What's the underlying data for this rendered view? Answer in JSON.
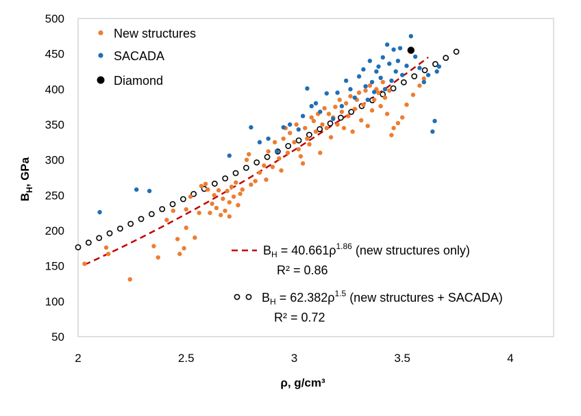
{
  "chart_data": {
    "type": "scatter",
    "xlabel": "ρ, g/cm³",
    "ylabel_main": "B",
    "ylabel_sub": "H",
    "ylabel_rest": ", GPa",
    "xlim": [
      2,
      4.2
    ],
    "ylim": [
      50,
      500
    ],
    "xticks": [
      2,
      2.5,
      3,
      3.5,
      4
    ],
    "xtick_labels": [
      "2",
      "2.5",
      "3",
      "3.5",
      "4"
    ],
    "yticks": [
      50,
      100,
      150,
      200,
      250,
      300,
      350,
      400,
      450,
      500
    ],
    "grid": false,
    "legend_position": "top-left",
    "colors": {
      "new": "#ED7D31",
      "sacada": "#1F6FB5",
      "diamond": "#000000",
      "fit_new": "#C00000",
      "fit_all": "#000000"
    },
    "series": [
      {
        "name": "New structures",
        "marker": "dot",
        "points": [
          [
            2.03,
            153
          ],
          [
            2.13,
            176
          ],
          [
            2.14,
            167
          ],
          [
            2.24,
            131
          ],
          [
            2.35,
            178
          ],
          [
            2.37,
            162
          ],
          [
            2.41,
            215
          ],
          [
            2.44,
            228
          ],
          [
            2.46,
            188
          ],
          [
            2.47,
            167
          ],
          [
            2.49,
            175
          ],
          [
            2.5,
            204
          ],
          [
            2.5,
            230
          ],
          [
            2.52,
            248
          ],
          [
            2.54,
            190
          ],
          [
            2.56,
            225
          ],
          [
            2.57,
            263
          ],
          [
            2.59,
            266
          ],
          [
            2.6,
            258
          ],
          [
            2.61,
            225
          ],
          [
            2.62,
            238
          ],
          [
            2.63,
            250
          ],
          [
            2.64,
            232
          ],
          [
            2.65,
            257
          ],
          [
            2.66,
            222
          ],
          [
            2.67,
            245
          ],
          [
            2.68,
            228
          ],
          [
            2.69,
            256
          ],
          [
            2.7,
            240
          ],
          [
            2.7,
            220
          ],
          [
            2.71,
            262
          ],
          [
            2.72,
            248
          ],
          [
            2.73,
            268
          ],
          [
            2.74,
            236
          ],
          [
            2.75,
            252
          ],
          [
            2.76,
            258
          ],
          [
            2.78,
            300
          ],
          [
            2.79,
            308
          ],
          [
            2.8,
            265
          ],
          [
            2.82,
            270
          ],
          [
            2.84,
            282
          ],
          [
            2.86,
            292
          ],
          [
            2.87,
            272
          ],
          [
            2.88,
            312
          ],
          [
            2.9,
            290
          ],
          [
            2.91,
            325
          ],
          [
            2.93,
            302
          ],
          [
            2.94,
            285
          ],
          [
            2.95,
            330
          ],
          [
            2.96,
            345
          ],
          [
            2.97,
            310
          ],
          [
            2.98,
            338
          ],
          [
            3.0,
            325
          ],
          [
            3.01,
            350
          ],
          [
            3.02,
            315
          ],
          [
            3.03,
            305
          ],
          [
            3.04,
            295
          ],
          [
            3.05,
            345
          ],
          [
            3.06,
            330
          ],
          [
            3.07,
            322
          ],
          [
            3.08,
            360
          ],
          [
            3.09,
            355
          ],
          [
            3.1,
            340
          ],
          [
            3.11,
            365
          ],
          [
            3.12,
            310
          ],
          [
            3.13,
            350
          ],
          [
            3.14,
            373
          ],
          [
            3.15,
            345
          ],
          [
            3.16,
            365
          ],
          [
            3.17,
            332
          ],
          [
            3.18,
            360
          ],
          [
            3.19,
            375
          ],
          [
            3.2,
            350
          ],
          [
            3.21,
            385
          ],
          [
            3.22,
            368
          ],
          [
            3.23,
            345
          ],
          [
            3.24,
            380
          ],
          [
            3.25,
            362
          ],
          [
            3.26,
            390
          ],
          [
            3.27,
            340
          ],
          [
            3.28,
            372
          ],
          [
            3.29,
            385
          ],
          [
            3.3,
            395
          ],
          [
            3.31,
            356
          ],
          [
            3.32,
            378
          ],
          [
            3.33,
            398
          ],
          [
            3.34,
            348
          ],
          [
            3.35,
            405
          ],
          [
            3.36,
            370
          ],
          [
            3.37,
            385
          ],
          [
            3.38,
            400
          ],
          [
            3.39,
            395
          ],
          [
            3.4,
            376
          ],
          [
            3.41,
            410
          ],
          [
            3.42,
            388
          ],
          [
            3.43,
            365
          ],
          [
            3.44,
            398
          ],
          [
            3.45,
            335
          ],
          [
            3.46,
            345
          ],
          [
            3.48,
            352
          ],
          [
            3.5,
            360
          ],
          [
            3.52,
            378
          ],
          [
            3.55,
            392
          ],
          [
            3.58,
            405
          ],
          [
            3.6,
            415
          ]
        ]
      },
      {
        "name": "SACADA",
        "marker": "dot",
        "points": [
          [
            2.1,
            226
          ],
          [
            2.27,
            258
          ],
          [
            2.33,
            256
          ],
          [
            2.7,
            306
          ],
          [
            2.8,
            346
          ],
          [
            2.84,
            325
          ],
          [
            2.88,
            330
          ],
          [
            2.92,
            312
          ],
          [
            2.95,
            346
          ],
          [
            2.98,
            350
          ],
          [
            3.02,
            343
          ],
          [
            3.04,
            362
          ],
          [
            3.06,
            401
          ],
          [
            3.08,
            376
          ],
          [
            3.1,
            380
          ],
          [
            3.12,
            368
          ],
          [
            3.15,
            394
          ],
          [
            3.18,
            358
          ],
          [
            3.2,
            395
          ],
          [
            3.22,
            376
          ],
          [
            3.24,
            412
          ],
          [
            3.26,
            400
          ],
          [
            3.28,
            388
          ],
          [
            3.3,
            418
          ],
          [
            3.32,
            428
          ],
          [
            3.33,
            404
          ],
          [
            3.34,
            385
          ],
          [
            3.35,
            440
          ],
          [
            3.36,
            410
          ],
          [
            3.37,
            396
          ],
          [
            3.38,
            425
          ],
          [
            3.39,
            432
          ],
          [
            3.4,
            416
          ],
          [
            3.41,
            445
          ],
          [
            3.42,
            400
          ],
          [
            3.43,
            463
          ],
          [
            3.44,
            436
          ],
          [
            3.45,
            412
          ],
          [
            3.46,
            456
          ],
          [
            3.47,
            425
          ],
          [
            3.48,
            440
          ],
          [
            3.49,
            458
          ],
          [
            3.5,
            420
          ],
          [
            3.52,
            433
          ],
          [
            3.54,
            475
          ],
          [
            3.56,
            446
          ],
          [
            3.58,
            430
          ],
          [
            3.6,
            410
          ],
          [
            3.62,
            420
          ],
          [
            3.64,
            340
          ],
          [
            3.65,
            355
          ],
          [
            3.66,
            425
          ],
          [
            3.67,
            432
          ]
        ]
      },
      {
        "name": "Diamond",
        "marker": "large-dot",
        "points": [
          [
            3.54,
            455
          ]
        ]
      }
    ],
    "fits": [
      {
        "label_main": "B",
        "label_sub": "H",
        "label_eq": " = 40.661ρ",
        "label_exp": "1.86",
        "label_note": " (new structures only)",
        "r2_label": "R² = 0.86",
        "coef": 40.661,
        "exponent": 1.86,
        "x_range": [
          2.03,
          3.62
        ],
        "style": "dashed"
      },
      {
        "label_main": "B",
        "label_sub": "H",
        "label_eq": " = 62.382ρ",
        "label_exp": "1.5",
        "label_note": " (new structures + SACADA)",
        "r2_label": "R² = 0.72",
        "coef": 62.382,
        "exponent": 1.5,
        "x_range": [
          2.0,
          3.75
        ],
        "style": "open-circles"
      }
    ]
  }
}
